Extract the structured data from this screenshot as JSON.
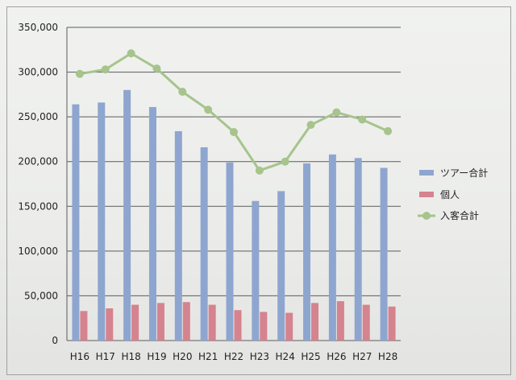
{
  "chart_data": {
    "type": "bar",
    "categories": [
      "H16",
      "H17",
      "H18",
      "H19",
      "H20",
      "H21",
      "H22",
      "H23",
      "H24",
      "H25",
      "H26",
      "H27",
      "H28"
    ],
    "series": [
      {
        "name": "ツアー合計",
        "kind": "bar",
        "color": "#8ea6cf",
        "values": [
          264000,
          266000,
          280000,
          261000,
          234000,
          216000,
          199000,
          156000,
          167000,
          198000,
          208000,
          204000,
          193000
        ]
      },
      {
        "name": "個人",
        "kind": "bar",
        "color": "#d5838e",
        "values": [
          33000,
          36000,
          40000,
          42000,
          43000,
          40000,
          34000,
          32000,
          31000,
          42000,
          44000,
          40000,
          38000
        ]
      },
      {
        "name": "入客合計",
        "kind": "line",
        "color": "#a6c48b",
        "values": [
          298000,
          303000,
          321000,
          304000,
          278000,
          258000,
          233000,
          190000,
          200000,
          241000,
          255000,
          247000,
          234000
        ]
      }
    ],
    "ylim": [
      0,
      350000
    ],
    "yticks": [
      "0",
      "50,000",
      "100,000",
      "150,000",
      "200,000",
      "250,000",
      "300,000",
      "350,000"
    ],
    "grid": true,
    "legend": "right"
  }
}
